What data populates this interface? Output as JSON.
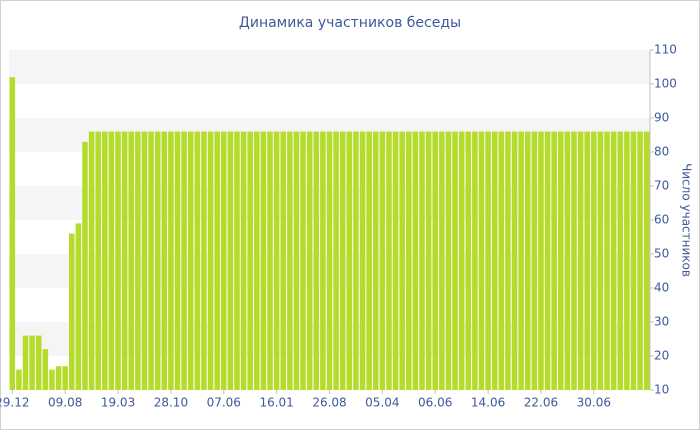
{
  "chart_data": {
    "type": "bar",
    "title": "Динамика участников беседы",
    "y_label": "Число участников",
    "categories": [
      "29.12",
      null,
      null,
      null,
      null,
      null,
      null,
      null,
      "09.08",
      null,
      null,
      null,
      null,
      null,
      null,
      null,
      "19.03",
      null,
      null,
      null,
      null,
      null,
      null,
      null,
      "28.10",
      null,
      null,
      null,
      null,
      null,
      null,
      null,
      "07.06",
      null,
      null,
      null,
      null,
      null,
      null,
      null,
      "16.01",
      null,
      null,
      null,
      null,
      null,
      null,
      null,
      "26.08",
      null,
      null,
      null,
      null,
      null,
      null,
      null,
      "05.04",
      null,
      null,
      null,
      null,
      null,
      null,
      null,
      "06.06",
      null,
      null,
      null,
      null,
      null,
      null,
      null,
      "14.06",
      null,
      null,
      null,
      null,
      null,
      null,
      null,
      "22.06",
      null,
      null,
      null,
      null,
      null,
      null,
      null,
      "30.06",
      null,
      null,
      null,
      null,
      null,
      null,
      null,
      null
    ],
    "values": [
      102,
      16,
      26,
      26,
      26,
      22,
      16,
      17,
      17,
      56,
      59,
      83,
      86,
      86,
      86,
      86,
      86,
      86,
      86,
      86,
      86,
      86,
      86,
      86,
      86,
      86,
      86,
      86,
      86,
      86,
      86,
      86,
      86,
      86,
      86,
      86,
      86,
      86,
      86,
      86,
      86,
      86,
      86,
      86,
      86,
      86,
      86,
      86,
      86,
      86,
      86,
      86,
      86,
      86,
      86,
      86,
      86,
      86,
      86,
      86,
      86,
      86,
      86,
      86,
      86,
      86,
      86,
      86,
      86,
      86,
      86,
      86,
      86,
      86,
      86,
      86,
      86,
      86,
      86,
      86,
      86,
      86,
      86,
      86,
      86,
      86,
      86,
      86,
      86,
      86,
      86,
      86,
      86,
      86,
      86,
      86,
      86
    ],
    "color": "#b5dc2b",
    "ylim": [
      10,
      110
    ],
    "yticks": [
      10,
      20,
      30,
      40,
      50,
      60,
      70,
      80,
      90,
      100,
      110
    ],
    "grid": "bands",
    "y_axis_side": "right"
  }
}
